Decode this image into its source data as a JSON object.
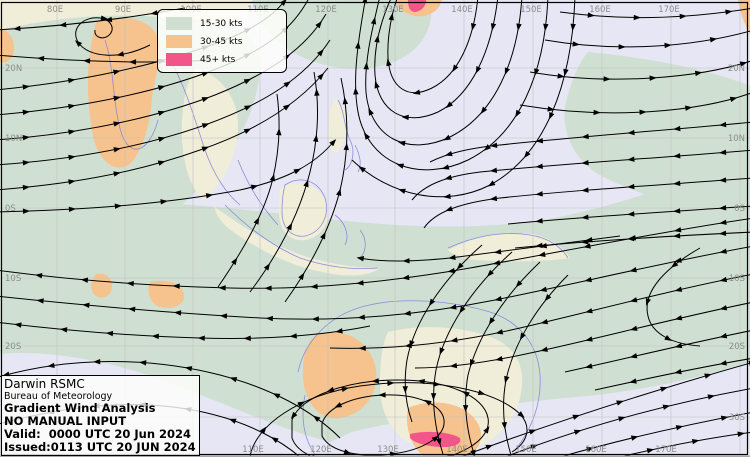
{
  "legend": {
    "items": [
      {
        "label": "15-30 kts",
        "color": "#cfe0d2"
      },
      {
        "label": "30-45 kts",
        "color": "#f6c28d"
      },
      {
        "label": "45+ kts",
        "color": "#f2558a"
      }
    ]
  },
  "info": {
    "agency": "Darwin RSMC",
    "bureau": "Bureau of Meteorology",
    "title": "Gradient Wind Analysis",
    "manual": "NO MANUAL INPUT",
    "valid": "Valid:  0000 UTC 20 Jun 2024",
    "issued": "Issued:0113 UTC 20 JUN 2024"
  },
  "axes": {
    "top": [
      "80E",
      "90E",
      "100E",
      "110E",
      "120E",
      "130E",
      "140E",
      "150E",
      "160E",
      "170E"
    ],
    "bottom": [
      "110E",
      "120E",
      "130E",
      "140E",
      "150E",
      "160E",
      "170E"
    ],
    "left": [
      "20N",
      "10N",
      "0S",
      "10S",
      "20S"
    ],
    "right": [
      "20N",
      "10N",
      "0S",
      "10S",
      "20S",
      "30S"
    ]
  },
  "chart_data": {
    "type": "streamline_map",
    "title": "Gradient Wind Analysis",
    "agency": "Darwin RSMC",
    "bureau": "Bureau of Meteorology",
    "manual_input": "NO MANUAL INPUT",
    "valid_time": "0000 UTC 20 Jun 2024",
    "issued_time": "0113 UTC 20 JUN 2024",
    "grid": {
      "longitude_labels": [
        "80E",
        "90E",
        "100E",
        "110E",
        "120E",
        "130E",
        "140E",
        "150E",
        "160E",
        "170E"
      ],
      "latitude_labels": [
        "20N",
        "10N",
        "0S",
        "10S",
        "20S",
        "30S"
      ],
      "gridlines": "10 degree interval, light gray"
    },
    "wind_speed_legend": [
      {
        "band": "15-30 kts",
        "color": "#cfe0d2"
      },
      {
        "band": "30-45 kts",
        "color": "#f6c28d"
      },
      {
        "band": "45+ kts",
        "color": "#f2558a"
      }
    ],
    "shaded_regions": [
      {
        "band": "30-45 kts",
        "location": "Bay of Bengal / India monsoon westerlies near 85E-95E, 5N-20N"
      },
      {
        "band": "30-45 kts",
        "location": "small patches in south Indian Ocean near 90E-100E, 10S"
      },
      {
        "band": "30-45 kts",
        "location": "central and southern Australia near 120E-135E, 20S-35S"
      },
      {
        "band": "30-45 kts",
        "location": "small areas on top edge near 133E and at 170E, 25N"
      },
      {
        "band": "45+ kts",
        "location": "tiny area at top edge near 133E"
      },
      {
        "band": "45+ kts",
        "location": "small sliver over southern Australia near 130E, 33S"
      },
      {
        "band": "15-30 kts",
        "location": "broad belts: NW Pacific trades, monsoon flow, south Indian Ocean and Coral Sea trades"
      }
    ],
    "flow_features": [
      "westerly monsoon flow north of the equator over the Indian Ocean flowing east-northeast",
      "easterlies with a small vortex near 85E, 22N",
      "ridge with hairpin streamlines near 135E-145E north of 10N",
      "easterly trade flow converging near 135E at the equator",
      "southeasterly trades across the Coral Sea and south Indian Ocean flowing west-northwest",
      "anticyclonic (counterclockwise) circulation over the Great Australian Bight",
      "mid-latitude westerlies entering the bottom-right of the chart"
    ]
  }
}
